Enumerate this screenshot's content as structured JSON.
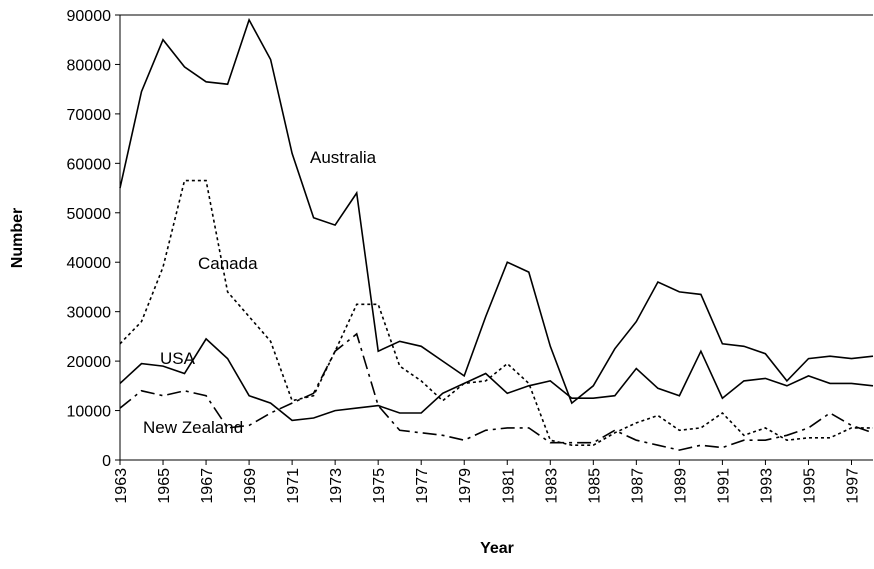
{
  "chart_data": {
    "type": "line",
    "x_label": "Year",
    "y_label": "Number",
    "x": [
      1963,
      1964,
      1965,
      1966,
      1967,
      1968,
      1969,
      1970,
      1971,
      1972,
      1973,
      1974,
      1975,
      1976,
      1977,
      1978,
      1979,
      1980,
      1981,
      1982,
      1983,
      1984,
      1985,
      1986,
      1987,
      1988,
      1989,
      1990,
      1991,
      1992,
      1993,
      1994,
      1995,
      1996,
      1997,
      1998
    ],
    "xlim": [
      1963,
      1998
    ],
    "xticks": [
      1963,
      1965,
      1967,
      1969,
      1971,
      1973,
      1975,
      1977,
      1979,
      1981,
      1983,
      1985,
      1987,
      1989,
      1991,
      1993,
      1995,
      1997
    ],
    "ylim": [
      0,
      90000
    ],
    "yticks": [
      0,
      10000,
      20000,
      30000,
      40000,
      50000,
      60000,
      70000,
      80000,
      90000
    ],
    "series": [
      {
        "name": "Australia",
        "color": "#000000",
        "style": "solid",
        "values": [
          55000,
          74500,
          85000,
          79500,
          76500,
          76000,
          89000,
          81000,
          62000,
          49000,
          47500,
          54000,
          22000,
          24000,
          23000,
          20000,
          17000,
          29000,
          40000,
          38000,
          23000,
          11500,
          15000,
          22500,
          28000,
          36000,
          34000,
          33500,
          23500,
          23000,
          21500,
          16000,
          20500,
          21000,
          20500,
          21000
        ]
      },
      {
        "name": "Canada",
        "color": "#000000",
        "style": "dotted",
        "values": [
          23500,
          28000,
          39000,
          56500,
          56500,
          34000,
          29000,
          24000,
          12000,
          13000,
          22000,
          31500,
          31500,
          19000,
          16000,
          12000,
          15500,
          16000,
          19500,
          15500,
          4000,
          3000,
          3000,
          5500,
          7500,
          9000,
          6000,
          6500,
          9500,
          5000,
          6500,
          4000,
          4500,
          4500,
          6500,
          6500
        ]
      },
      {
        "name": "USA",
        "color": "#000000",
        "style": "solid",
        "values": [
          15500,
          19500,
          19000,
          17500,
          24500,
          20500,
          13000,
          11500,
          8000,
          8500,
          10000,
          10500,
          11000,
          9500,
          9500,
          13500,
          15500,
          17500,
          13500,
          15000,
          16000,
          12500,
          12500,
          13000,
          18500,
          14500,
          13000,
          22000,
          12500,
          16000,
          16500,
          15000,
          17000,
          15500,
          15500,
          15000
        ]
      },
      {
        "name": "New Zealand",
        "color": "#000000",
        "style": "dashed",
        "values": [
          10500,
          14000,
          13000,
          14000,
          13000,
          6500,
          7000,
          9500,
          11500,
          13500,
          22000,
          25500,
          11000,
          6000,
          5500,
          5000,
          4000,
          6000,
          6500,
          6500,
          3500,
          3500,
          3500,
          6000,
          4000,
          3000,
          2000,
          3000,
          2500,
          4000,
          4000,
          5000,
          6500,
          9500,
          7000,
          5500
        ]
      }
    ]
  }
}
